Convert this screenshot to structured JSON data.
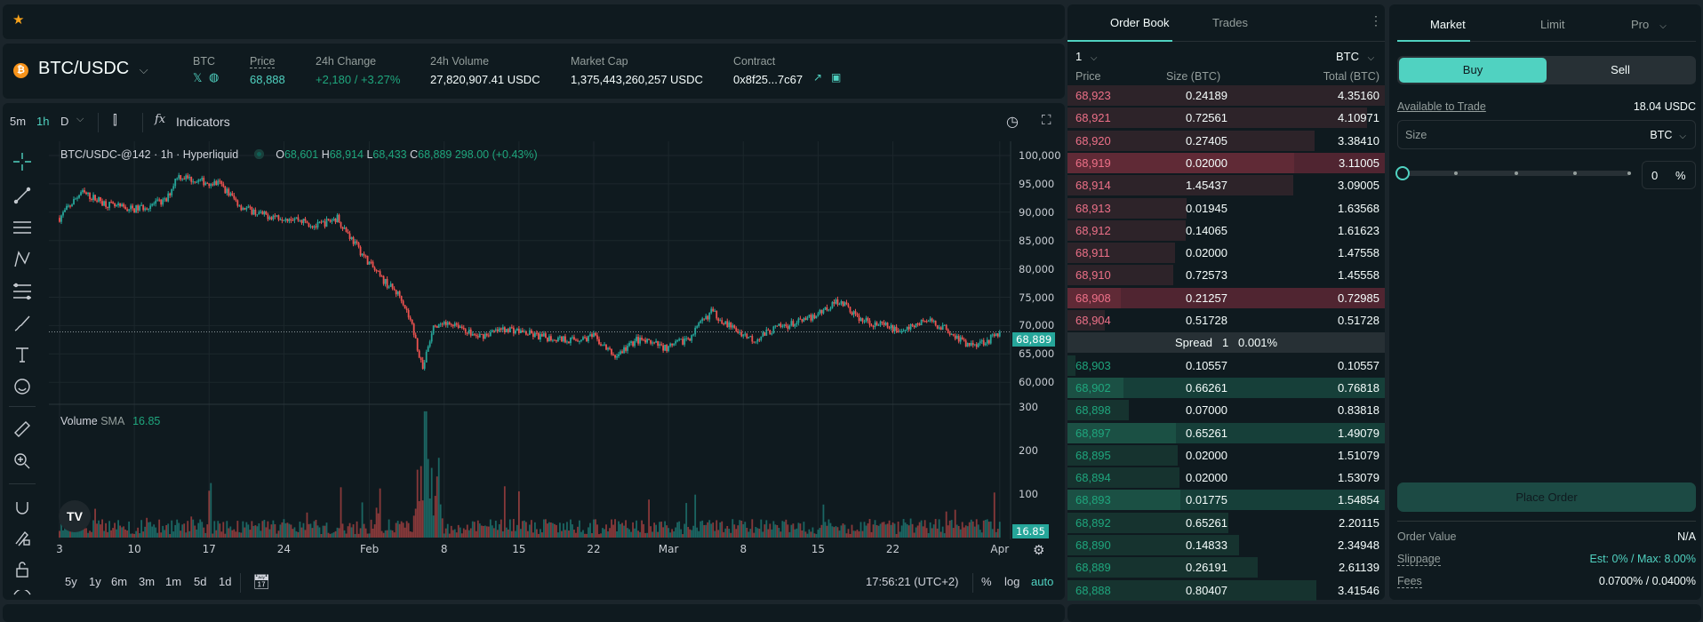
{
  "topbar": {
    "favorite_icon": "star-icon",
    "star_color": "#f7a21b"
  },
  "header": {
    "pair": "BTC/USDC",
    "coin_label": "BTC",
    "price_label": "Price",
    "price": "68,888",
    "change_label": "24h Change",
    "change": "+2,180 / +3.27%",
    "volume_label": "24h Volume",
    "volume": "27,820,907.41 USDC",
    "mcap_label": "Market Cap",
    "mcap": "1,375,443,260,257 USDC",
    "contract_label": "Contract",
    "contract": "0x8f25...7c67"
  },
  "chart_toolbar": {
    "intervals": [
      "5m",
      "1h",
      "D"
    ],
    "active_interval": "1h",
    "indicators": "Indicators"
  },
  "legend": {
    "title": "BTC/USDC-@142 · 1h · Hyperliquid",
    "o_label": "O",
    "o": "68,601",
    "h_label": "H",
    "h": "68,914",
    "l_label": "L",
    "l": "68,433",
    "c_label": "C",
    "c": "68,889",
    "change": "298.00 (+0.43%)",
    "volume_label": "Volume",
    "sma_label": "SMA",
    "sma": "16.85"
  },
  "price_axis": [
    "100,000",
    "95,000",
    "90,000",
    "85,000",
    "80,000",
    "75,000",
    "70,000",
    "65,000",
    "60,000"
  ],
  "price_axis_values": [
    100000,
    95000,
    90000,
    85000,
    80000,
    75000,
    70000,
    65000,
    60000
  ],
  "last_price_tag": "68,889",
  "volume_axis": [
    "300",
    "200",
    "100"
  ],
  "volume_axis_values": [
    300,
    200,
    100
  ],
  "volume_tag": "16.85",
  "time_axis": [
    {
      "label": "3",
      "date": "01-03"
    },
    {
      "label": "10",
      "date": "01-10"
    },
    {
      "label": "17",
      "date": "01-17"
    },
    {
      "label": "24",
      "date": "01-24"
    },
    {
      "label": "Feb",
      "date": "02-01"
    },
    {
      "label": "8",
      "date": "02-08"
    },
    {
      "label": "15",
      "date": "02-15"
    },
    {
      "label": "22",
      "date": "02-22"
    },
    {
      "label": "Mar",
      "date": "03-01"
    },
    {
      "label": "8",
      "date": "03-08"
    },
    {
      "label": "15",
      "date": "03-15"
    },
    {
      "label": "22",
      "date": "03-22"
    },
    {
      "label": "Apr",
      "date": "04-01"
    }
  ],
  "price_path": [
    [
      "01-03",
      89000
    ],
    [
      "01-05",
      93500
    ],
    [
      "01-08",
      91000
    ],
    [
      "01-10",
      90500
    ],
    [
      "01-13",
      92000
    ],
    [
      "01-14",
      96500
    ],
    [
      "01-16",
      95500
    ],
    [
      "01-18",
      95000
    ],
    [
      "01-20",
      91000
    ],
    [
      "01-22",
      89500
    ],
    [
      "01-25",
      89000
    ],
    [
      "01-27",
      87500
    ],
    [
      "01-29",
      89000
    ],
    [
      "01-31",
      83500
    ],
    [
      "02-02",
      78500
    ],
    [
      "02-04",
      75000
    ],
    [
      "02-05",
      70000
    ],
    [
      "02-06",
      62500
    ],
    [
      "02-07",
      69500
    ],
    [
      "02-09",
      70500
    ],
    [
      "02-11",
      68000
    ],
    [
      "02-14",
      69500
    ],
    [
      "02-17",
      68000
    ],
    [
      "02-20",
      67500
    ],
    [
      "02-22",
      68000
    ],
    [
      "02-24",
      64500
    ],
    [
      "02-26",
      67500
    ],
    [
      "03-01",
      66000
    ],
    [
      "03-03",
      68000
    ],
    [
      "03-05",
      72500
    ],
    [
      "03-07",
      69500
    ],
    [
      "03-09",
      67500
    ],
    [
      "03-11",
      69500
    ],
    [
      "03-14",
      71000
    ],
    [
      "03-17",
      74500
    ],
    [
      "03-19",
      71000
    ],
    [
      "03-21",
      70000
    ],
    [
      "03-23",
      69000
    ],
    [
      "03-25",
      71000
    ],
    [
      "03-27",
      69500
    ],
    [
      "03-29",
      66500
    ],
    [
      "03-31",
      67500
    ],
    [
      "04-01",
      68889
    ]
  ],
  "range_buttons": [
    "5y",
    "1y",
    "6m",
    "3m",
    "1m",
    "5d",
    "1d"
  ],
  "clock": "17:56:21 (UTC+2)",
  "scale_options": {
    "percent": "%",
    "log": "log",
    "auto": "auto"
  },
  "orderbook": {
    "tabs": [
      "Order Book",
      "Trades"
    ],
    "active_tab": "Order Book",
    "tick": "1",
    "unit": "BTC",
    "headers": [
      "Price",
      "Size (BTC)",
      "Total (BTC)"
    ],
    "asks": [
      {
        "price": "68,923",
        "size": "0.24189",
        "total": "4.35160"
      },
      {
        "price": "68,921",
        "size": "0.72561",
        "total": "4.10971"
      },
      {
        "price": "68,920",
        "size": "0.27405",
        "total": "3.38410"
      },
      {
        "price": "68,919",
        "size": "0.02000",
        "total": "3.11005",
        "flash": true
      },
      {
        "price": "68,914",
        "size": "1.45437",
        "total": "3.09005"
      },
      {
        "price": "68,913",
        "size": "0.01945",
        "total": "1.63568"
      },
      {
        "price": "68,912",
        "size": "0.14065",
        "total": "1.61623"
      },
      {
        "price": "68,911",
        "size": "0.02000",
        "total": "1.47558"
      },
      {
        "price": "68,910",
        "size": "0.72573",
        "total": "1.45558"
      },
      {
        "price": "68,908",
        "size": "0.21257",
        "total": "0.72985",
        "flash": true
      },
      {
        "price": "68,904",
        "size": "0.51728",
        "total": "0.51728"
      }
    ],
    "spread_label": "Spread",
    "spread": "1",
    "spread_pct": "0.001%",
    "bids": [
      {
        "price": "68,903",
        "size": "0.10557",
        "total": "0.10557"
      },
      {
        "price": "68,902",
        "size": "0.66261",
        "total": "0.76818",
        "flash": true
      },
      {
        "price": "68,898",
        "size": "0.07000",
        "total": "0.83818"
      },
      {
        "price": "68,897",
        "size": "0.65261",
        "total": "1.49079",
        "flash": true
      },
      {
        "price": "68,895",
        "size": "0.02000",
        "total": "1.51079"
      },
      {
        "price": "68,894",
        "size": "0.02000",
        "total": "1.53079"
      },
      {
        "price": "68,893",
        "size": "0.01775",
        "total": "1.54854",
        "flash": true
      },
      {
        "price": "68,892",
        "size": "0.65261",
        "total": "2.20115"
      },
      {
        "price": "68,890",
        "size": "0.14833",
        "total": "2.34948"
      },
      {
        "price": "68,889",
        "size": "0.26191",
        "total": "2.61139"
      },
      {
        "price": "68,888",
        "size": "0.80407",
        "total": "3.41546"
      }
    ]
  },
  "trade": {
    "tabs": [
      "Market",
      "Limit",
      "Pro"
    ],
    "active_tab": "Market",
    "buy": "Buy",
    "sell": "Sell",
    "available_label": "Available to Trade",
    "available": "18.04 USDC",
    "size_label": "Size",
    "size_unit": "BTC",
    "slider_percent": 0,
    "percent_value": "0",
    "percent_sign": "%",
    "place_order": "Place Order",
    "order_value_label": "Order Value",
    "order_value": "N/A",
    "slippage_label": "Slippage",
    "slippage": "Est: 0% / Max: 8.00%",
    "fees_label": "Fees",
    "fees": "0.0700% / 0.0400%"
  },
  "colors": {
    "accent": "#50d2c1",
    "up": "#1fa67d",
    "down": "#ed7088",
    "candle_up": "#26a69a",
    "candle_down": "#ef5350"
  }
}
